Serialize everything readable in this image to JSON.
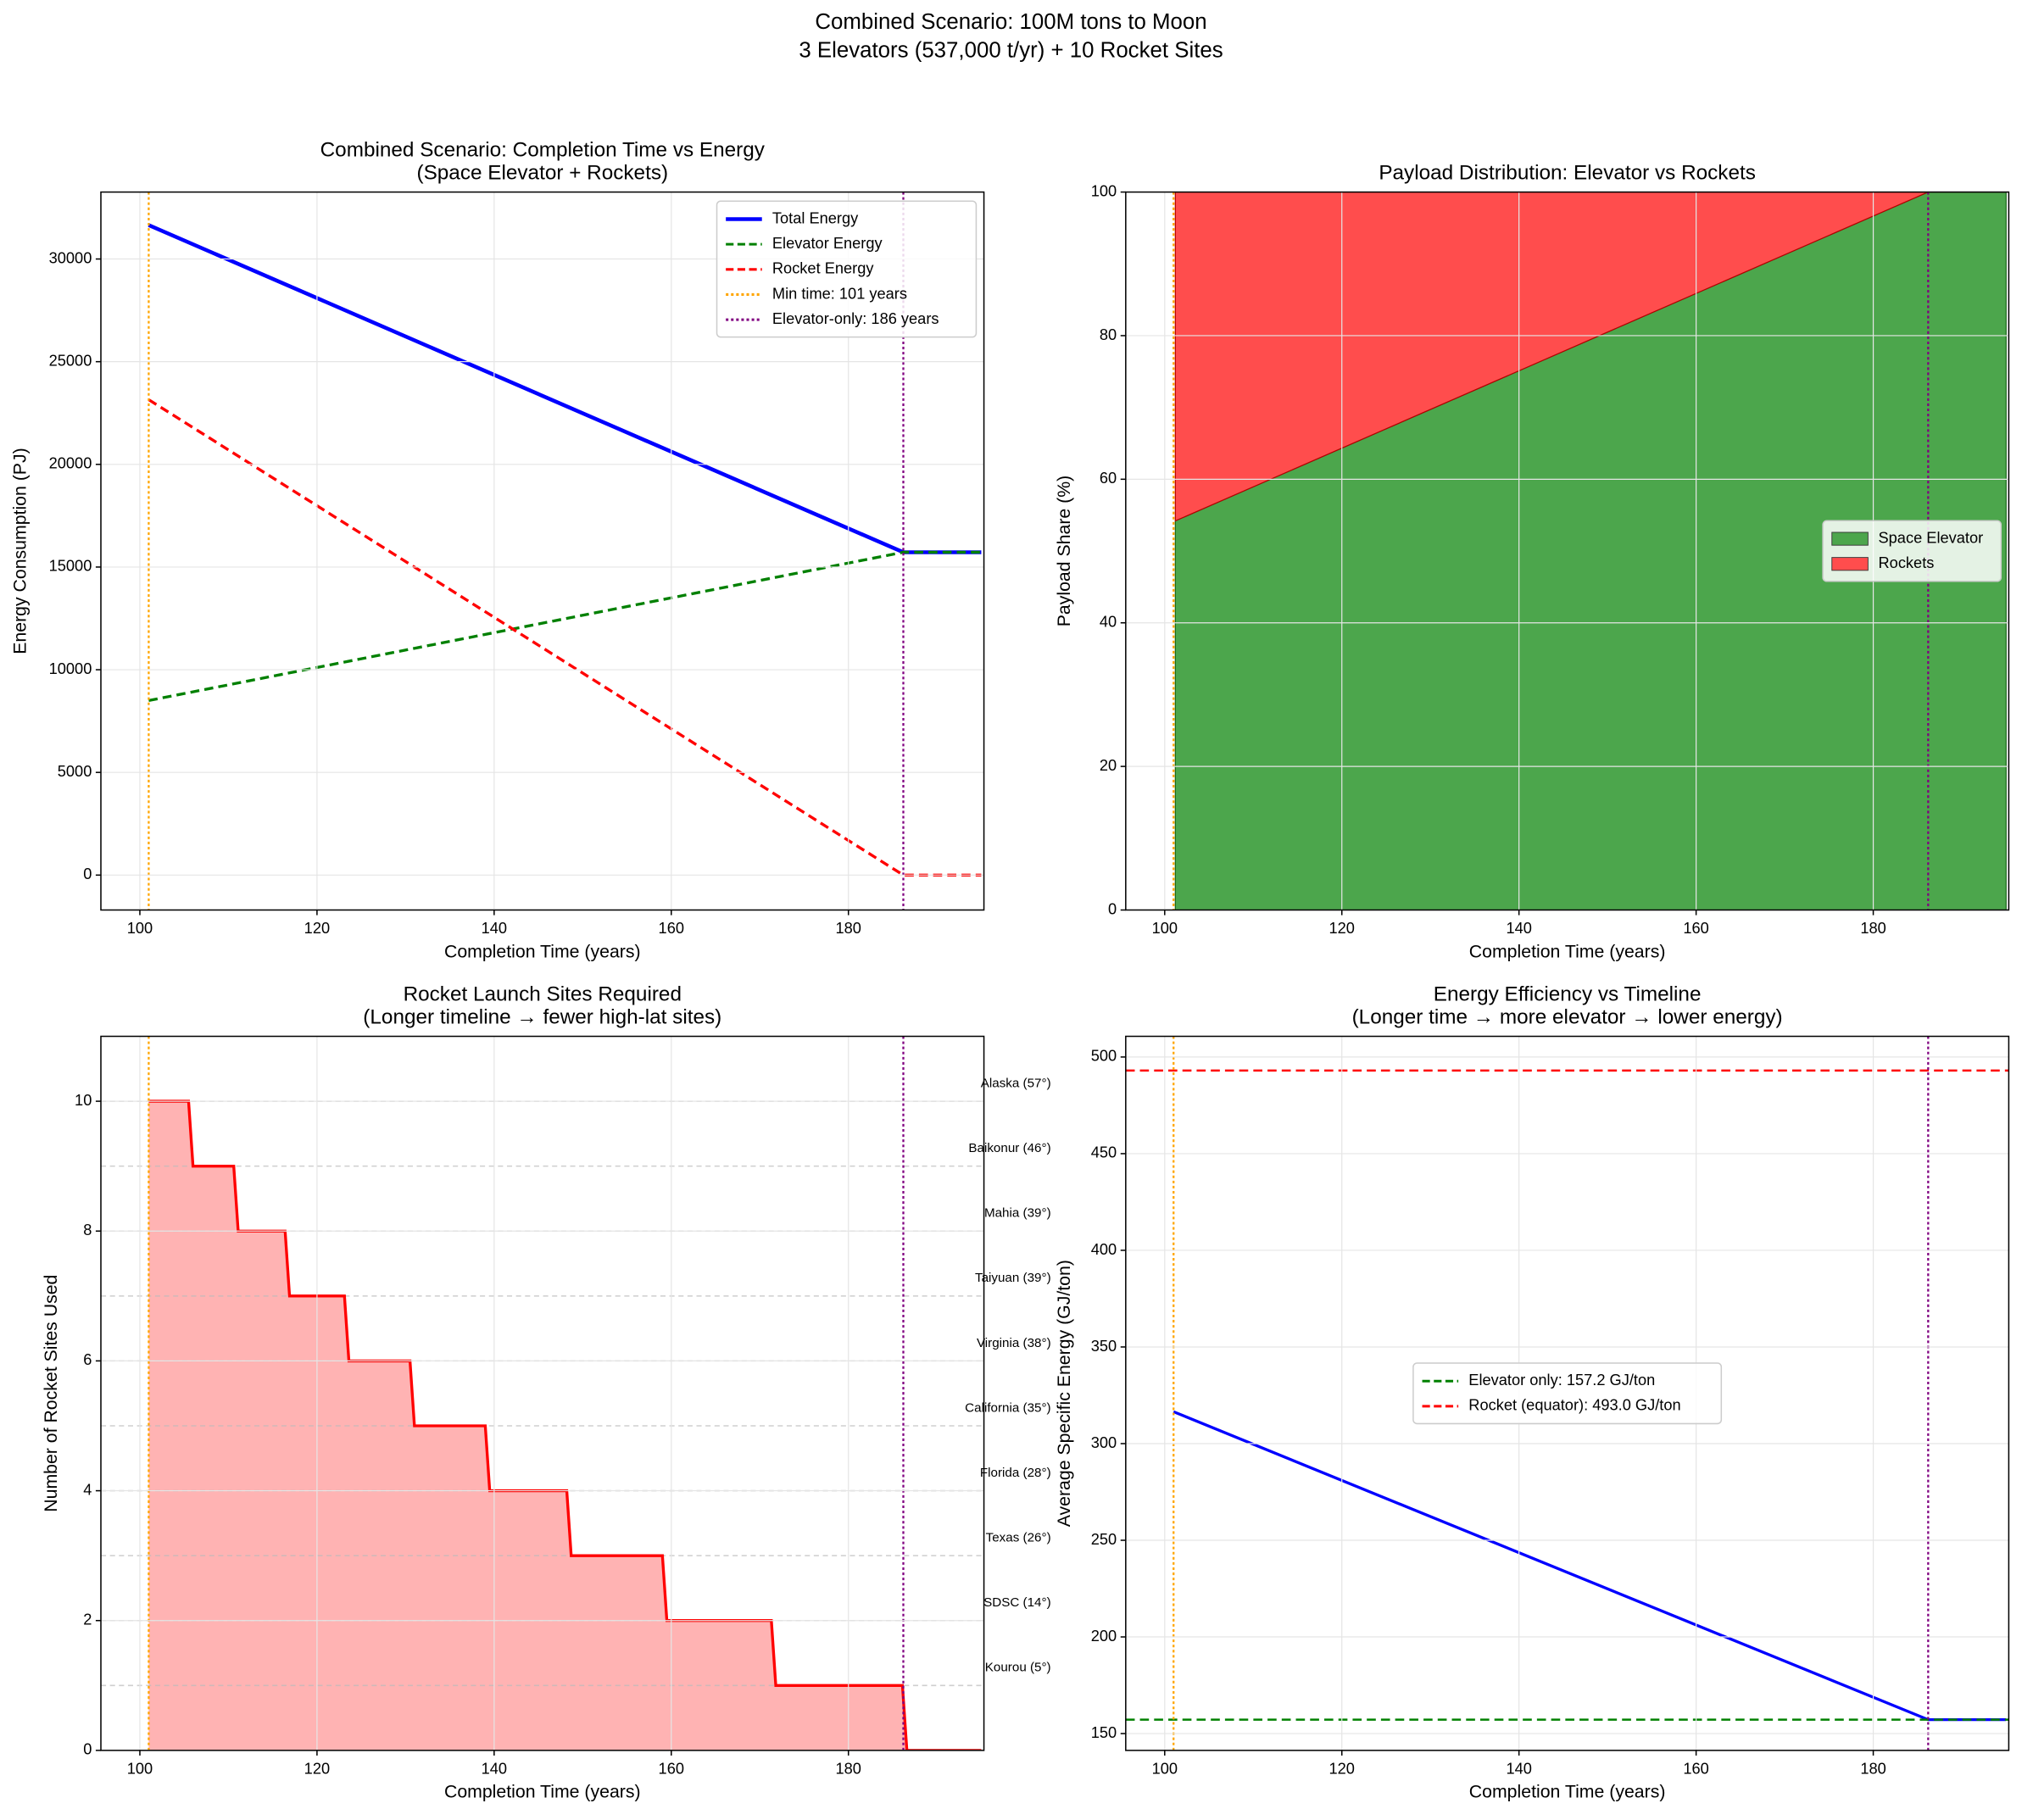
{
  "title": [
    "Combined Scenario: 100M tons to Moon",
    "3 Elevators (537,000 t/yr) + 10 Rocket Sites"
  ],
  "chart_data": [
    {
      "type": "line",
      "title": [
        "Combined Scenario: Completion Time vs Energy",
        "(Space Elevator + Rockets)"
      ],
      "xlabel": "Completion Time (years)",
      "ylabel": "Energy Consumption (PJ)",
      "xlim": [
        95.6,
        195.3
      ],
      "ylim": [
        -1700,
        33260
      ],
      "xticks": [
        100,
        120,
        140,
        160,
        180
      ],
      "yticks": [
        0,
        5000,
        10000,
        15000,
        20000,
        25000,
        30000
      ],
      "grid": true,
      "legend": "upper right",
      "x": [
        101,
        186.2,
        195
      ],
      "series": [
        {
          "name": "Total Energy",
          "color": "#0000ff",
          "style": "solid",
          "values": [
            31650,
            15720,
            15720
          ]
        },
        {
          "name": "Elevator Energy",
          "color": "#008000",
          "style": "dashed",
          "values": [
            8500,
            15720,
            15720
          ]
        },
        {
          "name": "Rocket Energy",
          "color": "#ff0000",
          "style": "dashed",
          "values": [
            23150,
            0,
            0
          ]
        }
      ],
      "vlines": [
        {
          "name": "Min time: 101 years",
          "value": 101,
          "color": "#ffa500"
        },
        {
          "name": "Elevator-only: 186 years",
          "value": 186.2,
          "color": "#800080"
        }
      ]
    },
    {
      "type": "area",
      "title": [
        "Payload Distribution: Elevator vs Rockets"
      ],
      "xlabel": "Completion Time (years)",
      "ylabel": "Payload Share (%)",
      "xlim": [
        95.6,
        195.3
      ],
      "ylim": [
        0,
        100
      ],
      "xticks": [
        100,
        120,
        140,
        160,
        180
      ],
      "yticks": [
        0,
        20,
        40,
        60,
        80,
        100
      ],
      "grid": true,
      "legend": "center right",
      "x": [
        101.2,
        186.2,
        195
      ],
      "series": [
        {
          "name": "Space Elevator",
          "color": "#4ca64c",
          "values": [
            54.2,
            100,
            100
          ]
        },
        {
          "name": "Rockets",
          "color": "#ff4d4d",
          "values": [
            45.8,
            0,
            0
          ]
        }
      ],
      "vlines": [
        {
          "value": 101,
          "color": "#ffa500"
        },
        {
          "value": 186.2,
          "color": "#800080"
        }
      ]
    },
    {
      "type": "step",
      "title": [
        "Rocket Launch Sites Required",
        "(Longer timeline → fewer high-lat sites)"
      ],
      "xlabel": "Completion Time (years)",
      "ylabel": "Number of Rocket Sites Used",
      "xlim": [
        95.6,
        195.3
      ],
      "ylim": [
        0,
        11
      ],
      "xticks": [
        100,
        120,
        140,
        160,
        180
      ],
      "yticks": [
        0,
        2,
        4,
        6,
        8,
        10
      ],
      "grid": true,
      "color": "#ff0000",
      "fill": "#ffb3b3",
      "x": [
        101,
        105.5,
        106,
        110.6,
        111.1,
        116.4,
        116.9,
        123.1,
        123.6,
        130.5,
        131,
        139,
        139.5,
        148.2,
        148.7,
        159,
        159.5,
        171.3,
        171.8,
        186.1,
        186.6,
        195
      ],
      "values": [
        10,
        10,
        9,
        9,
        8,
        8,
        7,
        7,
        6,
        6,
        5,
        5,
        4,
        4,
        3,
        3,
        2,
        2,
        1,
        1,
        0,
        0
      ],
      "sites": {
        "values": [
          10,
          9,
          8,
          7,
          6,
          5,
          4,
          3,
          2,
          1
        ],
        "labels": [
          "Alaska (57°)",
          "Baikonur (46°)",
          "Mahia (39°)",
          "Taiyuan (39°)",
          "Virginia (38°)",
          "California (35°)",
          "Florida (28°)",
          "Texas (26°)",
          "SDSC (14°)",
          "Kourou (5°)"
        ]
      },
      "vlines": [
        {
          "value": 101,
          "color": "#ffa500"
        },
        {
          "value": 186.2,
          "color": "#800080"
        }
      ]
    },
    {
      "type": "line",
      "title": [
        "Energy Efficiency vs Timeline",
        "(Longer time → more elevator → lower energy)"
      ],
      "xlabel": "Completion Time (years)",
      "ylabel": "Average Specific Energy (GJ/ton)",
      "xlim": [
        95.6,
        195.3
      ],
      "ylim": [
        141.3,
        510.7
      ],
      "xticks": [
        100,
        120,
        140,
        160,
        180
      ],
      "yticks": [
        150,
        200,
        250,
        300,
        350,
        400,
        450,
        500
      ],
      "grid": true,
      "legend": "center",
      "x": [
        101,
        186.2,
        195
      ],
      "series": [
        {
          "color": "#0000ff",
          "style": "solid",
          "values": [
            316.5,
            157.2,
            157.2
          ]
        }
      ],
      "hlines": [
        {
          "name": "Elevator only: 157.2 GJ/ton",
          "value": 157.2,
          "color": "#008000"
        },
        {
          "name": "Rocket (equator): 493.0 GJ/ton",
          "value": 493,
          "color": "#ff0000"
        }
      ],
      "vlines": [
        {
          "value": 101,
          "color": "#ffa500"
        },
        {
          "value": 186.2,
          "color": "#800080"
        }
      ]
    }
  ]
}
